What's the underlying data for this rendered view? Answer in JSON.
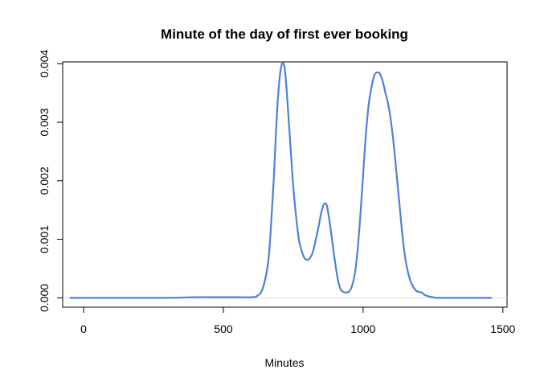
{
  "chart_data": {
    "type": "line",
    "title": "Minute of the day of first ever booking",
    "xlabel": "Minutes",
    "ylabel": "",
    "xlim": [
      -75,
      1515
    ],
    "ylim": [
      -0.00016,
      0.00403
    ],
    "xticks": [
      0,
      500,
      1000,
      1500
    ],
    "yticks": [
      0.0,
      0.001,
      0.002,
      0.003,
      0.004
    ],
    "xtick_labels": [
      "0",
      "500",
      "1000",
      "1500"
    ],
    "ytick_labels": [
      "0.000",
      "0.001",
      "0.002",
      "0.003",
      "0.004"
    ],
    "grid": false,
    "legend": "none",
    "baseline": 0,
    "series": [
      {
        "color": "#4f7fdc",
        "x": [
          -50,
          0,
          100,
          200,
          300,
          400,
          450,
          500,
          550,
          600,
          620,
          640,
          660,
          670,
          680,
          690,
          700,
          710,
          720,
          730,
          740,
          750,
          760,
          770,
          780,
          790,
          800,
          810,
          820,
          830,
          840,
          850,
          860,
          870,
          880,
          890,
          900,
          910,
          920,
          930,
          940,
          950,
          960,
          970,
          980,
          990,
          1000,
          1010,
          1020,
          1030,
          1040,
          1050,
          1060,
          1070,
          1080,
          1090,
          1100,
          1110,
          1120,
          1130,
          1140,
          1150,
          1160,
          1170,
          1180,
          1190,
          1200,
          1210,
          1220,
          1230,
          1240,
          1250,
          1260,
          1270,
          1280,
          1290,
          1300,
          1350,
          1400,
          1460
        ],
        "y": [
          0.0,
          0.0,
          0.0,
          0.0,
          0.0,
          1e-05,
          1e-05,
          1e-05,
          1e-05,
          1e-05,
          3e-05,
          0.00015,
          0.0006,
          0.0012,
          0.002,
          0.003,
          0.0037,
          0.004,
          0.0039,
          0.0033,
          0.0026,
          0.0019,
          0.0014,
          0.001,
          0.0008,
          0.00068,
          0.00065,
          0.00068,
          0.00078,
          0.00098,
          0.0012,
          0.00145,
          0.0016,
          0.00158,
          0.0013,
          0.00095,
          0.0006,
          0.0003,
          0.00014,
          0.0001,
          9e-05,
          0.00011,
          0.0002,
          0.0004,
          0.0008,
          0.0014,
          0.0021,
          0.0028,
          0.0033,
          0.0036,
          0.0038,
          0.00385,
          0.00383,
          0.0037,
          0.0035,
          0.0033,
          0.003,
          0.0026,
          0.0021,
          0.0016,
          0.0011,
          0.0007,
          0.00045,
          0.00028,
          0.00018,
          0.00012,
          0.0001,
          9e-05,
          5e-05,
          3e-05,
          2e-05,
          1e-05,
          0.0,
          0.0,
          0.0,
          0.0,
          0.0,
          0.0,
          0.0,
          0.0
        ]
      }
    ]
  }
}
